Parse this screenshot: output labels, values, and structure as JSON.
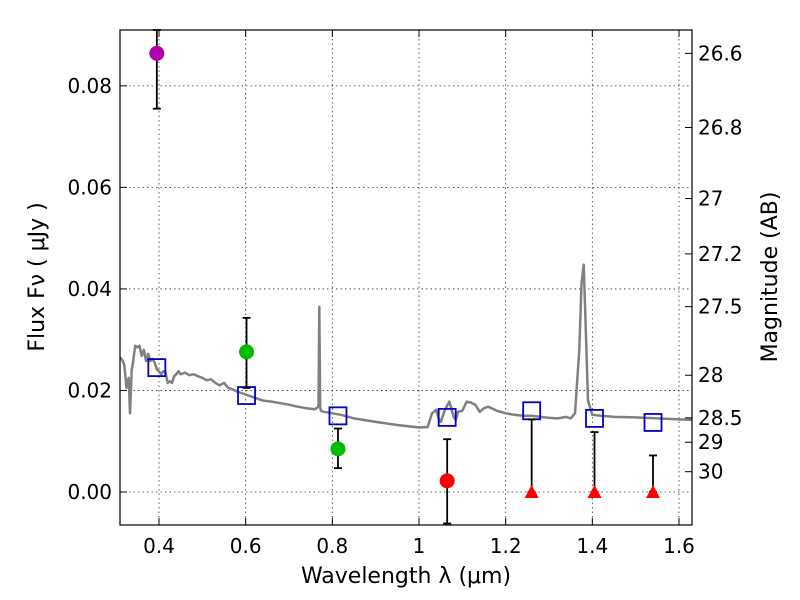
{
  "chart_data": {
    "type": "scatter",
    "xlabel": "Wavelength  λ (μm)",
    "ylabel": "Flux  Fν  ( μJy )",
    "ylabel_right": "Magnitude (AB)",
    "xlim": [
      0.31,
      1.63
    ],
    "ylim": [
      -0.0065,
      0.091
    ],
    "x_ticks": [
      0.4,
      0.6,
      0.8,
      1.0,
      1.2,
      1.4,
      1.6
    ],
    "x_tick_labels": [
      "0.4",
      "0.6",
      "0.8",
      "1",
      "1.2",
      "1.4",
      "1.6"
    ],
    "y_ticks": [
      0.0,
      0.02,
      0.04,
      0.06,
      0.08
    ],
    "y_tick_labels": [
      "0.00",
      "0.02",
      "0.04",
      "0.06",
      "0.08"
    ],
    "right_ticks": [
      {
        "flux": 0.0864,
        "label": "26.6"
      },
      {
        "flux": 0.0718,
        "label": "26.8"
      },
      {
        "flux": 0.0578,
        "label": "27"
      },
      {
        "flux": 0.0469,
        "label": "27.2"
      },
      {
        "flux": 0.0365,
        "label": "27.5"
      },
      {
        "flux": 0.023,
        "label": "28"
      },
      {
        "flux": 0.0146,
        "label": "28.5"
      },
      {
        "flux": 0.0098,
        "label": "29"
      },
      {
        "flux": 0.004,
        "label": "30"
      }
    ],
    "grid": true,
    "colors": {
      "model": "#808080",
      "model_photometry": "#0000cc",
      "violet": "#b000b0",
      "green": "#00bb00",
      "red": "#ff0000",
      "errorbar": "#000000"
    },
    "series": [
      {
        "name": "model-spectrum",
        "kind": "line",
        "color": "#808080",
        "x": [
          0.31,
          0.315,
          0.32,
          0.325,
          0.33,
          0.333,
          0.337,
          0.34,
          0.345,
          0.35,
          0.355,
          0.36,
          0.365,
          0.37,
          0.375,
          0.38,
          0.385,
          0.39,
          0.395,
          0.4,
          0.405,
          0.41,
          0.415,
          0.42,
          0.425,
          0.43,
          0.435,
          0.44,
          0.445,
          0.45,
          0.46,
          0.47,
          0.48,
          0.49,
          0.5,
          0.51,
          0.52,
          0.53,
          0.54,
          0.55,
          0.56,
          0.57,
          0.58,
          0.6,
          0.62,
          0.64,
          0.66,
          0.68,
          0.7,
          0.72,
          0.74,
          0.76,
          0.768,
          0.77,
          0.772,
          0.774,
          0.78,
          0.8,
          0.82,
          0.85,
          0.9,
          0.95,
          1.0,
          1.02,
          1.03,
          1.04,
          1.045,
          1.05,
          1.06,
          1.07,
          1.08,
          1.085,
          1.09,
          1.1,
          1.11,
          1.12,
          1.13,
          1.14,
          1.15,
          1.16,
          1.18,
          1.2,
          1.22,
          1.24,
          1.26,
          1.28,
          1.3,
          1.32,
          1.34,
          1.35,
          1.36,
          1.37,
          1.375,
          1.38,
          1.385,
          1.39,
          1.4,
          1.42,
          1.45,
          1.5,
          1.55,
          1.6,
          1.63
        ],
        "y": [
          0.0265,
          0.026,
          0.025,
          0.0205,
          0.0225,
          0.0155,
          0.024,
          0.0255,
          0.0288,
          0.0285,
          0.0288,
          0.0268,
          0.028,
          0.0258,
          0.0272,
          0.0258,
          0.0262,
          0.0255,
          0.0242,
          0.0238,
          0.0232,
          0.0238,
          0.0235,
          0.0215,
          0.0218,
          0.0215,
          0.0228,
          0.0232,
          0.0238,
          0.0232,
          0.0235,
          0.023,
          0.0232,
          0.0228,
          0.0225,
          0.022,
          0.0222,
          0.0215,
          0.021,
          0.0215,
          0.0205,
          0.0202,
          0.0198,
          0.0192,
          0.0186,
          0.018,
          0.0178,
          0.0175,
          0.0172,
          0.0168,
          0.0165,
          0.0163,
          0.0168,
          0.0365,
          0.0165,
          0.016,
          0.0158,
          0.0155,
          0.0152,
          0.0145,
          0.0138,
          0.0132,
          0.0127,
          0.0128,
          0.0155,
          0.0162,
          0.0145,
          0.0138,
          0.0162,
          0.0178,
          0.0148,
          0.0142,
          0.0158,
          0.016,
          0.0178,
          0.0176,
          0.0172,
          0.0158,
          0.0165,
          0.0168,
          0.016,
          0.0155,
          0.0152,
          0.015,
          0.015,
          0.0148,
          0.0146,
          0.0145,
          0.0148,
          0.0145,
          0.0155,
          0.028,
          0.041,
          0.0448,
          0.032,
          0.018,
          0.0152,
          0.015,
          0.0148,
          0.0147,
          0.0145,
          0.0143,
          0.0142
        ]
      },
      {
        "name": "model-photometry",
        "kind": "open-square",
        "color": "#0000cc",
        "x": [
          0.395,
          0.602,
          0.813,
          1.065,
          1.26,
          1.405,
          1.54
        ],
        "y": [
          0.0245,
          0.019,
          0.015,
          0.0147,
          0.016,
          0.0145,
          0.0137
        ]
      },
      {
        "name": "observed-violet",
        "kind": "circle",
        "color": "#b000b0",
        "x": [
          0.395
        ],
        "y": [
          0.0864
        ],
        "yerr_low": [
          0.0755
        ],
        "yerr_high": [
          0.091
        ]
      },
      {
        "name": "observed-green",
        "kind": "circle",
        "color": "#00bb00",
        "x": [
          0.602,
          0.813
        ],
        "y": [
          0.0276,
          0.0085
        ],
        "yerr_low": [
          0.0205,
          0.0047
        ],
        "yerr_high": [
          0.0343,
          0.0125
        ]
      },
      {
        "name": "observed-red",
        "kind": "circle",
        "color": "#ff0000",
        "x": [
          1.065
        ],
        "y": [
          0.0022
        ],
        "yerr_low": [
          -0.0062
        ],
        "yerr_high": [
          0.0104
        ]
      },
      {
        "name": "upper-limits",
        "kind": "triangle",
        "color": "#ff0000",
        "x": [
          1.26,
          1.405,
          1.54
        ],
        "y": [
          0.0,
          0.0,
          0.0
        ],
        "yerr_low": [
          0.0,
          0.0,
          0.0
        ],
        "yerr_high": [
          0.0143,
          0.0118,
          0.0072
        ]
      }
    ]
  }
}
